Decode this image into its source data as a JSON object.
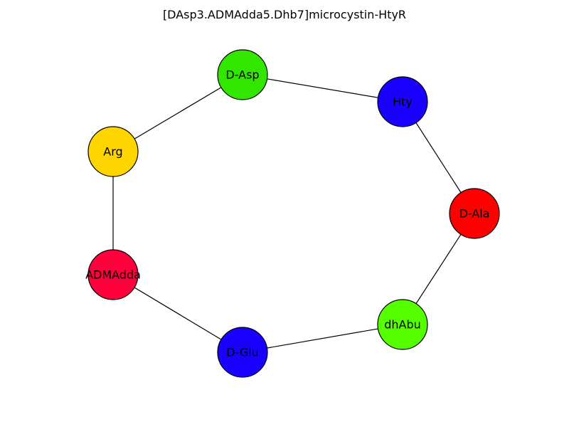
{
  "chart_data": {
    "type": "network",
    "title": "[DAsp3.ADMAdda5.Dhb7]microcystin-HtyR",
    "nodes": [
      {
        "id": "D-Asp",
        "label": "D-Asp",
        "color": "#33e600"
      },
      {
        "id": "Hty",
        "label": "Hty",
        "color": "#1a00ff"
      },
      {
        "id": "D-Ala",
        "label": "D-Ala",
        "color": "#ff0000"
      },
      {
        "id": "dhAbu",
        "label": "dhAbu",
        "color": "#55ff00"
      },
      {
        "id": "D-Glu",
        "label": "D-Glu",
        "color": "#1a00ff"
      },
      {
        "id": "ADMAdda",
        "label": "ADMAdda",
        "color": "#ff003c"
      },
      {
        "id": "Arg",
        "label": "Arg",
        "color": "#ffd500"
      }
    ],
    "edges": [
      [
        "D-Asp",
        "Hty"
      ],
      [
        "Hty",
        "D-Ala"
      ],
      [
        "D-Ala",
        "dhAbu"
      ],
      [
        "dhAbu",
        "D-Glu"
      ],
      [
        "D-Glu",
        "ADMAdda"
      ],
      [
        "ADMAdda",
        "Arg"
      ],
      [
        "Arg",
        "D-Asp"
      ]
    ]
  }
}
